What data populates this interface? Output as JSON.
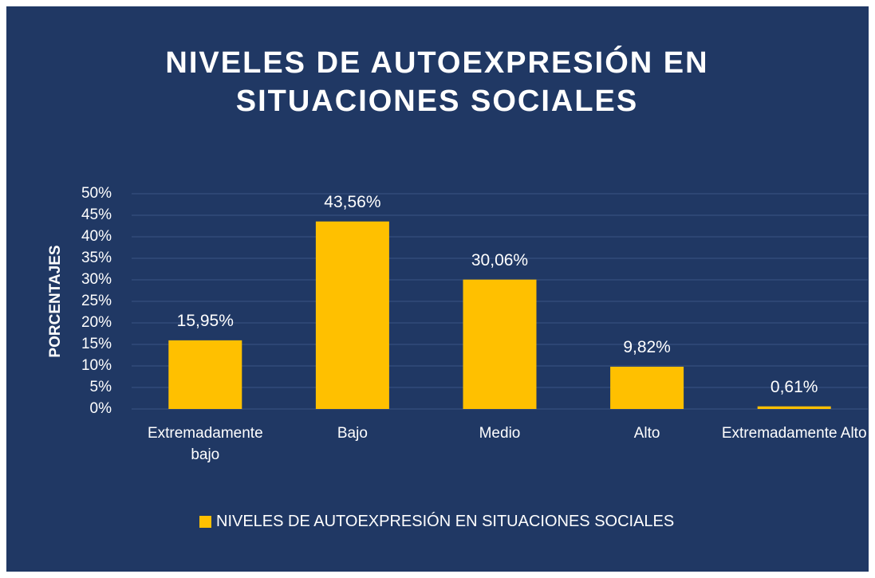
{
  "chart_data": {
    "type": "bar",
    "title": "NIVELES DE AUTOEXPRESIÓN EN SITUACIONES SOCIALES",
    "y_axis_label": "PORCENTAJES",
    "categories": [
      "Extremadamente bajo",
      "Bajo",
      "Medio",
      "Alto",
      "Extremadamente Alto"
    ],
    "series": [
      {
        "name": "NIVELES DE AUTOEXPRESIÓN EN SITUACIONES SOCIALES",
        "color": "#ffc000",
        "values": [
          15.95,
          43.56,
          30.06,
          9.82,
          0.61
        ],
        "value_labels": [
          "15,95%",
          "43,56%",
          "30,06%",
          "9,82%",
          "0,61%"
        ]
      }
    ],
    "ylim": [
      0,
      50
    ],
    "yticks": [
      {
        "value": 0,
        "label": "0%"
      },
      {
        "value": 5,
        "label": "5%"
      },
      {
        "value": 10,
        "label": "10%"
      },
      {
        "value": 15,
        "label": "15%"
      },
      {
        "value": 20,
        "label": "20%"
      },
      {
        "value": 25,
        "label": "25%"
      },
      {
        "value": 30,
        "label": "30%"
      },
      {
        "value": 35,
        "label": "35%"
      },
      {
        "value": 40,
        "label": "40%"
      },
      {
        "value": 45,
        "label": "45%"
      },
      {
        "value": 50,
        "label": "50%"
      }
    ],
    "grid": true,
    "legend": "bottom"
  }
}
